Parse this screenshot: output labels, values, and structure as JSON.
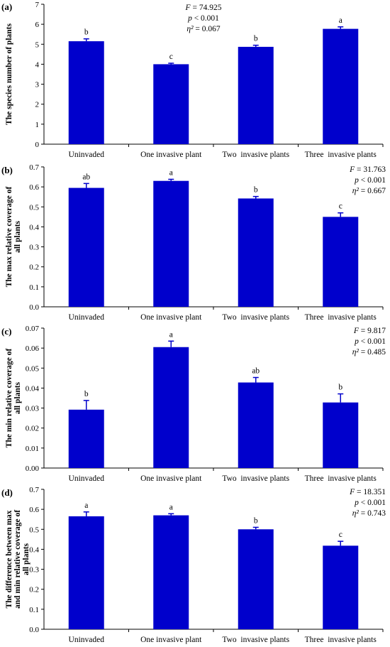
{
  "chart_data": [
    {
      "type": "bar",
      "panel_label": "(a)",
      "ylabel_lines": [
        "The species number of plants"
      ],
      "categories": [
        "Uninvaded",
        "One invasive plant",
        "Two  invasive plants",
        "Three  invasive plants"
      ],
      "values": [
        5.15,
        4.0,
        4.87,
        5.77
      ],
      "errors": [
        0.12,
        0.05,
        0.08,
        0.1
      ],
      "letters": [
        "b",
        "c",
        "b",
        "a"
      ],
      "ylim": [
        0,
        7
      ],
      "yticks": [
        "0",
        "1",
        "2",
        "3",
        "4",
        "5",
        "6",
        "7"
      ],
      "stats": {
        "F": "74.925",
        "p": "< 0.001",
        "eta": "= 0.067"
      },
      "bar_color": "#0000cc"
    },
    {
      "type": "bar",
      "panel_label": "(b)",
      "ylabel_lines": [
        "The max relative coverage of",
        "all plants"
      ],
      "categories": [
        "Uninvaded",
        "One invasive plant",
        "Two  invasive plants",
        "Three  invasive plants"
      ],
      "values": [
        0.595,
        0.63,
        0.542,
        0.45
      ],
      "errors": [
        0.022,
        0.008,
        0.01,
        0.02
      ],
      "letters": [
        "ab",
        "a",
        "b",
        "c"
      ],
      "ylim": [
        0,
        0.7
      ],
      "yticks": [
        "0.0",
        "0.1",
        "0.2",
        "0.3",
        "0.4",
        "0.5",
        "0.6",
        "0.7"
      ],
      "stats": {
        "F": "31.763",
        "p": "< 0.001",
        "eta": "= 0.667"
      },
      "bar_color": "#0000cc"
    },
    {
      "type": "bar",
      "panel_label": "(c)",
      "ylabel_lines": [
        "The min relative coverage  of",
        "all plants"
      ],
      "categories": [
        "Uninvaded",
        "One invasive plant",
        "Two  invasive plants",
        "Three  invasive plants"
      ],
      "values": [
        0.0292,
        0.0605,
        0.0428,
        0.0328
      ],
      "errors": [
        0.0046,
        0.003,
        0.0025,
        0.0043
      ],
      "letters": [
        "b",
        "a",
        "ab",
        "b"
      ],
      "ylim": [
        0,
        0.07
      ],
      "yticks": [
        "0.00",
        "0.01",
        "0.02",
        "0.03",
        "0.04",
        "0.05",
        "0.06",
        "0.07"
      ],
      "stats": {
        "F": "9.817",
        "p": "< 0.001",
        "eta": "= 0.485"
      },
      "bar_color": "#0000cc"
    },
    {
      "type": "bar",
      "panel_label": "(d)",
      "ylabel_lines": [
        "The difference between max",
        "and min relative coverage of",
        "all plants"
      ],
      "categories": [
        "Uninvaded",
        "One invasive plant",
        "Two  invasive plants",
        "Three  invasive plants"
      ],
      "values": [
        0.565,
        0.57,
        0.5,
        0.418
      ],
      "errors": [
        0.022,
        0.008,
        0.01,
        0.022
      ],
      "letters": [
        "a",
        "a",
        "b",
        "c"
      ],
      "ylim": [
        0,
        0.7
      ],
      "yticks": [
        "0.0",
        "0.1",
        "0.2",
        "0.3",
        "0.4",
        "0.5",
        "0.6",
        "0.7"
      ],
      "stats": {
        "F": "18.351",
        "p": "< 0.001",
        "eta": "= 0.743"
      },
      "bar_color": "#0000cc"
    }
  ]
}
